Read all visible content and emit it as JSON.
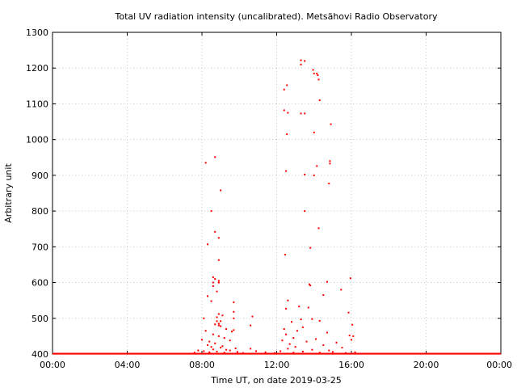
{
  "chart_data": {
    "type": "scatter",
    "title": "Total UV radiation intensity (uncalibrated). Metsähovi Radio Observatory",
    "xlabel": "Time UT, on date 2019-03-25",
    "ylabel": "Arbitrary unit",
    "xlim": [
      0,
      24
    ],
    "ylim": [
      400,
      1300
    ],
    "xticks": [
      {
        "value": 0,
        "label": "00:00"
      },
      {
        "value": 4,
        "label": "04:00"
      },
      {
        "value": 8,
        "label": "08:00"
      },
      {
        "value": 12,
        "label": "12:00"
      },
      {
        "value": 16,
        "label": "16:00"
      },
      {
        "value": 20,
        "label": "20:00"
      },
      {
        "value": 24,
        "label": "00:00"
      }
    ],
    "yticks": [
      {
        "value": 400,
        "label": "400"
      },
      {
        "value": 500,
        "label": "500"
      },
      {
        "value": 600,
        "label": "600"
      },
      {
        "value": 700,
        "label": "700"
      },
      {
        "value": 800,
        "label": "800"
      },
      {
        "value": 900,
        "label": "900"
      },
      {
        "value": 1000,
        "label": "1000"
      },
      {
        "value": 1100,
        "label": "1100"
      },
      {
        "value": 1200,
        "label": "1200"
      },
      {
        "value": 1300,
        "label": "1300"
      }
    ],
    "grid": true,
    "point_color": "#ff0000",
    "baseline": {
      "y": 401,
      "x_range": [
        0,
        24
      ]
    },
    "points": [
      [
        8.2,
        935
      ],
      [
        8.7,
        951
      ],
      [
        9.0,
        858
      ],
      [
        8.5,
        800
      ],
      [
        8.7,
        742
      ],
      [
        8.9,
        725
      ],
      [
        8.3,
        707
      ],
      [
        8.9,
        663
      ],
      [
        8.6,
        615
      ],
      [
        8.7,
        610
      ],
      [
        8.9,
        605
      ],
      [
        8.6,
        600
      ],
      [
        8.9,
        600
      ],
      [
        8.6,
        590
      ],
      [
        8.8,
        575
      ],
      [
        8.3,
        562
      ],
      [
        8.5,
        548
      ],
      [
        9.7,
        545
      ],
      [
        9.7,
        518
      ],
      [
        8.9,
        512
      ],
      [
        9.1,
        508
      ],
      [
        8.8,
        503
      ],
      [
        8.1,
        500
      ],
      [
        9.7,
        500
      ],
      [
        8.8,
        492
      ],
      [
        9.0,
        492
      ],
      [
        8.9,
        485
      ],
      [
        8.7,
        483
      ],
      [
        8.9,
        480
      ],
      [
        9.0,
        478
      ],
      [
        9.3,
        470
      ],
      [
        9.7,
        467
      ],
      [
        8.2,
        465
      ],
      [
        9.6,
        463
      ],
      [
        8.6,
        455
      ],
      [
        8.9,
        450
      ],
      [
        9.2,
        445
      ],
      [
        8.0,
        440
      ],
      [
        9.5,
        438
      ],
      [
        8.4,
        435
      ],
      [
        8.7,
        430
      ],
      [
        8.3,
        425
      ],
      [
        9.1,
        422
      ],
      [
        8.5,
        420
      ],
      [
        9.0,
        418
      ],
      [
        9.8,
        416
      ],
      [
        8.6,
        413
      ],
      [
        9.3,
        412
      ],
      [
        7.8,
        410
      ],
      [
        9.5,
        410
      ],
      [
        8.1,
        408
      ],
      [
        8.8,
        407
      ],
      [
        9.9,
        406
      ],
      [
        8.4,
        405
      ],
      [
        7.6,
        404
      ],
      [
        9.2,
        404
      ],
      [
        10.2,
        403
      ],
      [
        10.7,
        505
      ],
      [
        10.6,
        480
      ],
      [
        10.6,
        415
      ],
      [
        10.9,
        408
      ],
      [
        11.4,
        405
      ],
      [
        13.3,
        1222
      ],
      [
        13.5,
        1220
      ],
      [
        13.3,
        1210
      ],
      [
        13.95,
        1195
      ],
      [
        14.0,
        1185
      ],
      [
        14.15,
        1185
      ],
      [
        14.2,
        1180
      ],
      [
        14.25,
        1168
      ],
      [
        12.55,
        1152
      ],
      [
        12.4,
        1140
      ],
      [
        14.3,
        1110
      ],
      [
        12.4,
        1082
      ],
      [
        12.6,
        1075
      ],
      [
        13.3,
        1073
      ],
      [
        13.5,
        1073
      ],
      [
        14.9,
        1043
      ],
      [
        14.0,
        1020
      ],
      [
        12.55,
        1015
      ],
      [
        14.85,
        940
      ],
      [
        14.85,
        933
      ],
      [
        14.15,
        926
      ],
      [
        12.5,
        912
      ],
      [
        13.5,
        902
      ],
      [
        14.0,
        900
      ],
      [
        14.8,
        877
      ],
      [
        13.5,
        800
      ],
      [
        14.25,
        752
      ],
      [
        13.8,
        697
      ],
      [
        12.45,
        678
      ],
      [
        15.95,
        612
      ],
      [
        14.7,
        602
      ],
      [
        13.75,
        595
      ],
      [
        13.8,
        592
      ],
      [
        15.45,
        580
      ],
      [
        14.5,
        565
      ],
      [
        12.6,
        550
      ],
      [
        13.2,
        533
      ],
      [
        13.7,
        530
      ],
      [
        12.5,
        527
      ],
      [
        15.85,
        516
      ],
      [
        13.9,
        498
      ],
      [
        13.3,
        497
      ],
      [
        14.3,
        493
      ],
      [
        12.8,
        490
      ],
      [
        16.05,
        482
      ],
      [
        13.4,
        475
      ],
      [
        12.4,
        470
      ],
      [
        13.1,
        465
      ],
      [
        14.7,
        460
      ],
      [
        12.5,
        455
      ],
      [
        15.9,
        452
      ],
      [
        16.1,
        450
      ],
      [
        12.9,
        445
      ],
      [
        14.1,
        442
      ],
      [
        16.0,
        440
      ],
      [
        12.3,
        438
      ],
      [
        13.6,
        435
      ],
      [
        15.2,
        432
      ],
      [
        12.7,
        428
      ],
      [
        14.5,
        425
      ],
      [
        13.0,
        420
      ],
      [
        15.5,
        418
      ],
      [
        12.6,
        415
      ],
      [
        13.9,
        412
      ],
      [
        14.8,
        410
      ],
      [
        12.2,
        408
      ],
      [
        13.4,
        407
      ],
      [
        15.0,
        406
      ],
      [
        16.2,
        405
      ],
      [
        12.9,
        404
      ],
      [
        14.3,
        404
      ],
      [
        15.7,
        403
      ],
      [
        11.9,
        403
      ]
    ]
  }
}
